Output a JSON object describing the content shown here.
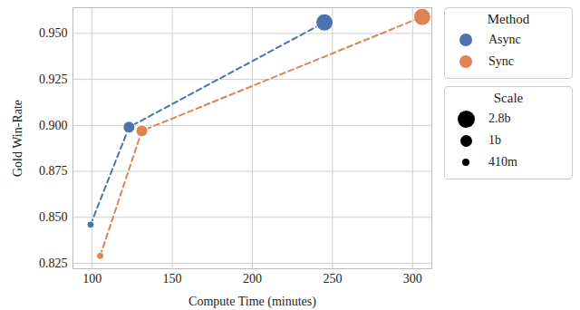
{
  "chart_data": {
    "type": "line",
    "x_label": "Compute Time (minutes)",
    "y_label": "Gold Win-Rate",
    "xlim": [
      88,
      312
    ],
    "xticks": [
      100,
      150,
      200,
      250,
      300
    ],
    "ylim": [
      0.822,
      0.964
    ],
    "yticks": [
      {
        "value": 0.825,
        "label": "0.825"
      },
      {
        "value": 0.85,
        "label": "0.850"
      },
      {
        "value": 0.875,
        "label": "0.875"
      },
      {
        "value": 0.9,
        "label": "0.900"
      },
      {
        "value": 0.925,
        "label": "0.925"
      },
      {
        "value": 0.95,
        "label": "0.950"
      }
    ],
    "grid": true,
    "line_style": "dashed",
    "marker": "circle",
    "legend": "right",
    "legend_title": "Method",
    "size_legend_title": "Scale",
    "size_categories": [
      "2.8b",
      "1b",
      "410m"
    ],
    "series": [
      {
        "name": "Async",
        "color": "#4c72b0",
        "x": [
          99,
          123,
          245
        ],
        "values": [
          0.846,
          0.899,
          0.956
        ],
        "sizes": [
          "410m",
          "1b",
          "2.8b"
        ]
      },
      {
        "name": "Sync",
        "color": "#dd8452",
        "x": [
          105,
          131,
          306
        ],
        "values": [
          0.829,
          0.897,
          0.959
        ],
        "sizes": [
          "410m",
          "1b",
          "2.8b"
        ]
      }
    ]
  }
}
